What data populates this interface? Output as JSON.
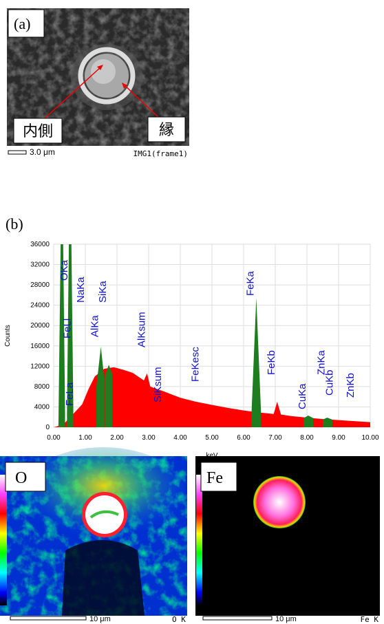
{
  "panel_a": {
    "label": "(a)",
    "inner": "内側",
    "edge": "縁",
    "scale": "3.0 μm",
    "caption": "IMG1(frame1)"
  },
  "panel_b": {
    "label": "(b)"
  },
  "chart_data": {
    "type": "area",
    "xlabel": "keV",
    "ylabel": "Counts",
    "xlim": [
      0,
      10
    ],
    "ylim": [
      0,
      36000
    ],
    "xticks": [
      {
        "value": 0,
        "label": "0.00"
      },
      {
        "value": 1,
        "label": "1.00"
      },
      {
        "value": 2,
        "label": "2.00"
      },
      {
        "value": 3,
        "label": "3.00"
      },
      {
        "value": 4,
        "label": "4.00"
      },
      {
        "value": 5,
        "label": "5.00"
      },
      {
        "value": 6,
        "label": "6.00"
      },
      {
        "value": 7,
        "label": "7.00"
      },
      {
        "value": 8,
        "label": "8.00"
      },
      {
        "value": 9,
        "label": "9.00"
      },
      {
        "value": 10,
        "label": "10.00"
      }
    ],
    "yticks": [
      0,
      4000,
      8000,
      12000,
      16000,
      20000,
      24000,
      28000,
      32000,
      36000
    ],
    "series": [
      {
        "color": "#ff0000",
        "x": [
          0.0,
          0.3,
          0.6,
          0.9,
          1.1,
          1.3,
          1.6,
          1.9,
          2.2,
          2.5,
          2.85,
          2.95,
          3.05,
          3.5,
          4.0,
          4.5,
          5.0,
          5.5,
          6.0,
          6.5,
          6.95,
          7.06,
          7.18,
          7.5,
          8.0,
          8.5,
          9.0,
          9.5,
          10.0
        ],
        "values": [
          0,
          500,
          2500,
          4500,
          7500,
          10000,
          11500,
          11800,
          11300,
          10700,
          9200,
          10600,
          8000,
          7000,
          5800,
          5000,
          4400,
          3800,
          3300,
          2900,
          2600,
          5000,
          2500,
          2200,
          1900,
          1600,
          1400,
          1200,
          1000
        ]
      },
      {
        "color": "#1e7d1e",
        "x": [
          0.15,
          0.22,
          0.3,
          0.36,
          null,
          0.42,
          0.48,
          0.56,
          0.62,
          null,
          1.35,
          1.49,
          1.6,
          null,
          1.62,
          1.74,
          1.85,
          null,
          6.25,
          6.4,
          6.55,
          null,
          7.9,
          8.04,
          8.2,
          null,
          8.5,
          8.64,
          8.8
        ],
        "values": [
          0,
          36000,
          36000,
          3000,
          null,
          3000,
          36000,
          36000,
          4000,
          null,
          8000,
          15800,
          9500,
          null,
          10000,
          12300,
          10500,
          null,
          2900,
          25500,
          2900,
          null,
          1800,
          2300,
          1800,
          null,
          1500,
          1900,
          1500
        ]
      }
    ],
    "annotations": [
      {
        "text": "OKa",
        "x": 0.52
      },
      {
        "text": "FeLl",
        "x": 0.62
      },
      {
        "text": "FeLa",
        "x": 0.7
      },
      {
        "text": "NaKa",
        "x": 1.04
      },
      {
        "text": "AlKa",
        "x": 1.49
      },
      {
        "text": "SiKa",
        "x": 1.74
      },
      {
        "text": "AlKsum",
        "x": 2.97
      },
      {
        "text": "SiKsum",
        "x": 3.48
      },
      {
        "text": "FeKesc",
        "x": 4.66
      },
      {
        "text": "FeKa",
        "x": 6.4
      },
      {
        "text": "FeKb",
        "x": 7.06
      },
      {
        "text": "CuKa",
        "x": 8.04
      },
      {
        "text": "ZnKa",
        "x": 8.64
      },
      {
        "text": "CuKb",
        "x": 8.9
      },
      {
        "text": "ZnKb",
        "x": 9.57
      }
    ]
  },
  "maps": [
    {
      "label": "O",
      "scale": "10 μm",
      "caption": "O K"
    },
    {
      "label": "Fe",
      "scale": "10 μm",
      "caption": "Fe K"
    }
  ]
}
